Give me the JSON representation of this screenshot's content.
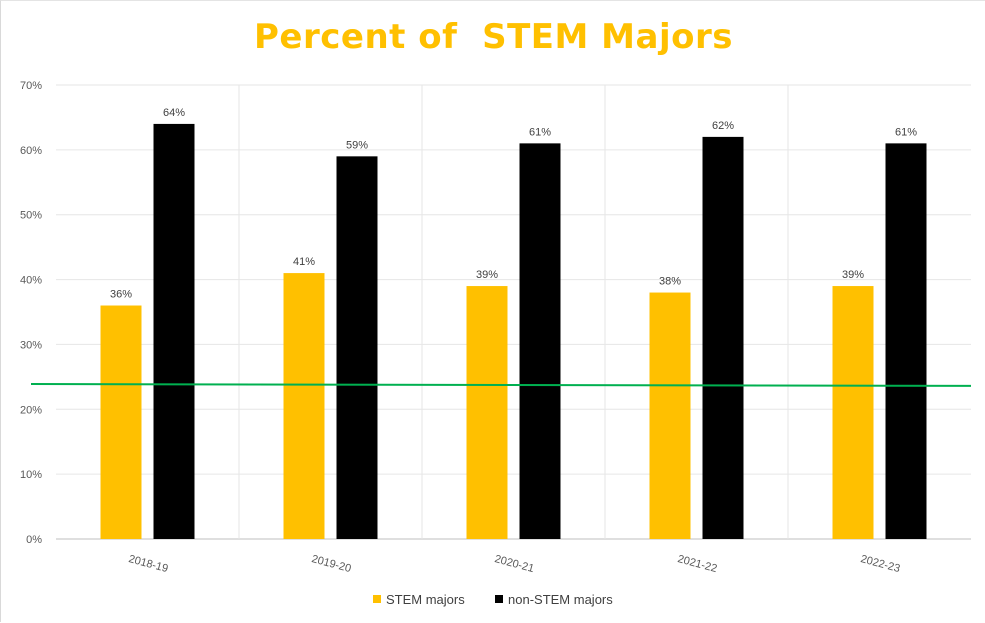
{
  "chart_data": {
    "type": "bar",
    "title": "Percent of  STEM Majors",
    "categories": [
      "2018-19",
      "2019-20",
      "2020-21",
      "2021-22",
      "2022-23"
    ],
    "series": [
      {
        "name": "STEM majors",
        "color": "#ffc000",
        "values": [
          36,
          41,
          39,
          38,
          39
        ],
        "labels": [
          "36%",
          "41%",
          "39%",
          "38%",
          "39%"
        ]
      },
      {
        "name": "non-STEM majors",
        "color": "#000000",
        "values": [
          64,
          59,
          61,
          62,
          61
        ],
        "labels": [
          "64%",
          "59%",
          "61%",
          "62%",
          "61%"
        ]
      }
    ],
    "reference_line": {
      "color": "#00b050",
      "start_value": 23.9,
      "end_value": 23.6
    },
    "ylim": [
      0,
      70
    ],
    "yticks": [
      0,
      10,
      20,
      30,
      40,
      50,
      60,
      70
    ],
    "ytick_labels": [
      "0%",
      "10%",
      "20%",
      "30%",
      "40%",
      "50%",
      "60%",
      "70%"
    ],
    "xlabel": "",
    "ylabel": "",
    "grid": true,
    "legend_position": "bottom"
  }
}
